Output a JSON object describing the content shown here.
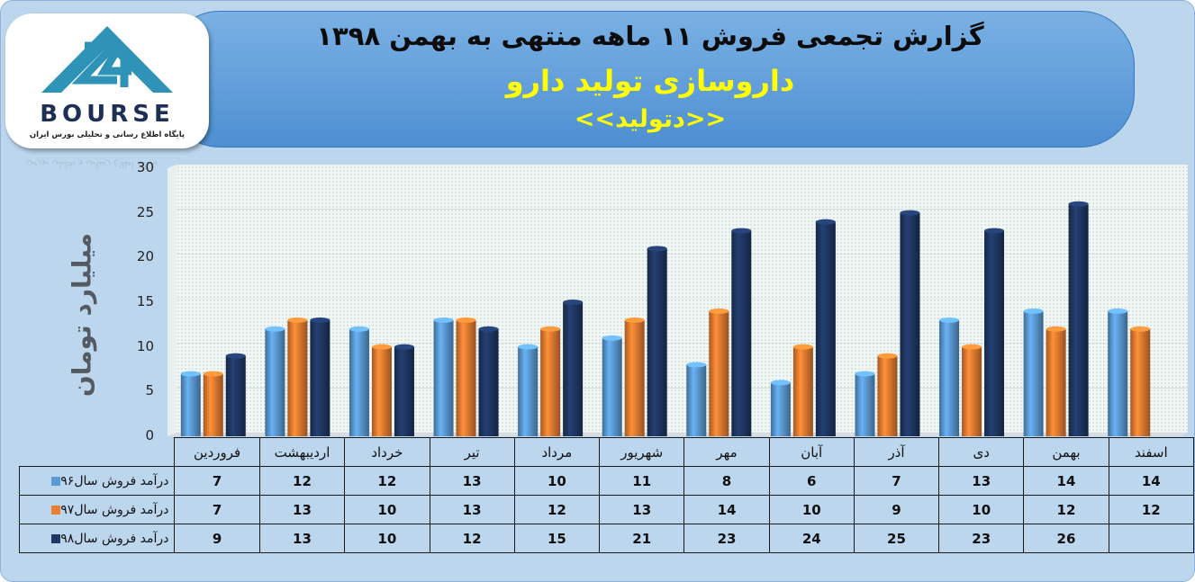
{
  "header": {
    "title": "گزارش تجمعی فروش  ۱۱ ماهه منتهی به بهمن ۱۳۹۸",
    "company": "داروسازی تولید دارو",
    "ticker": "<<دتولید>>"
  },
  "logo": {
    "text": "BOURSE",
    "subtitle": "پایگاه اطلاع رسانی و تحلیلی بورس ایران"
  },
  "colors": {
    "series96": "#5b9bd5",
    "series97": "#ed7d31",
    "series98": "#1f3864",
    "banner": "#5b9bd5",
    "title_accent": "#ffff00"
  },
  "chart_data": {
    "type": "bar",
    "ylabel": "میلیارد تومان",
    "ylim": [
      0,
      30
    ],
    "yticks": [
      0,
      5,
      10,
      15,
      20,
      25,
      30
    ],
    "grid": "dotted background",
    "categories": [
      "فروردین",
      "اردیبهشت",
      "خرداد",
      "تیر",
      "مرداد",
      "شهریور",
      "مهر",
      "آبان",
      "آذر",
      "دی",
      "بهمن",
      "اسفند"
    ],
    "series": [
      {
        "name": "درآمد فروش سال۹۶",
        "values": [
          7,
          12,
          12,
          13,
          10,
          11,
          8,
          6,
          7,
          13,
          14,
          14
        ]
      },
      {
        "name": "درآمد فروش سال۹۷",
        "values": [
          7,
          13,
          10,
          13,
          12,
          13,
          14,
          10,
          9,
          10,
          12,
          12
        ]
      },
      {
        "name": "درآمد فروش سال۹۸",
        "values": [
          9,
          13,
          10,
          12,
          15,
          21,
          23,
          24,
          25,
          23,
          26,
          null
        ]
      }
    ]
  }
}
